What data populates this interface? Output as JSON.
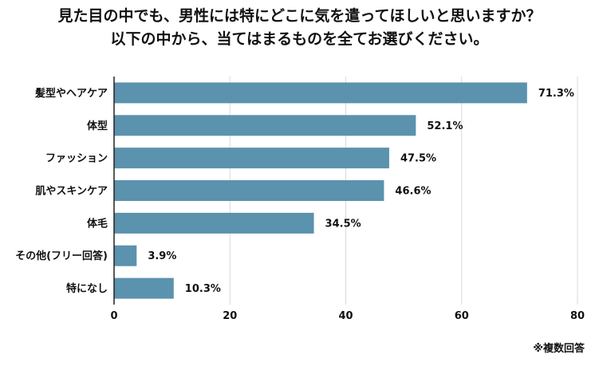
{
  "title_lines": [
    "見た目の中でも、男性には特にどこに気を遣ってほしいと思いますか？",
    "以下の中から、当てはまるものを全てお選びください。"
  ],
  "note": "※複数回答",
  "colors": {
    "bar": "#5b92ad",
    "grid": "#d9d9d9",
    "axis": "#222222"
  },
  "chart_data": {
    "type": "bar",
    "orientation": "horizontal",
    "categories": [
      "髪型やヘアケア",
      "体型",
      "ファッション",
      "肌やスキンケア",
      "体毛",
      "その他(フリー回答)",
      "特になし"
    ],
    "values": [
      71.3,
      52.1,
      47.5,
      46.6,
      34.5,
      3.9,
      10.3
    ],
    "value_labels": [
      "71.3%",
      "52.1%",
      "47.5%",
      "46.6%",
      "34.5%",
      "3.9%",
      "10.3%"
    ],
    "xlim": [
      0,
      80
    ],
    "xticks": [
      0,
      20,
      40,
      60,
      80
    ],
    "xtick_labels": [
      "0",
      "20",
      "40",
      "60",
      "80"
    ],
    "grid": true
  }
}
